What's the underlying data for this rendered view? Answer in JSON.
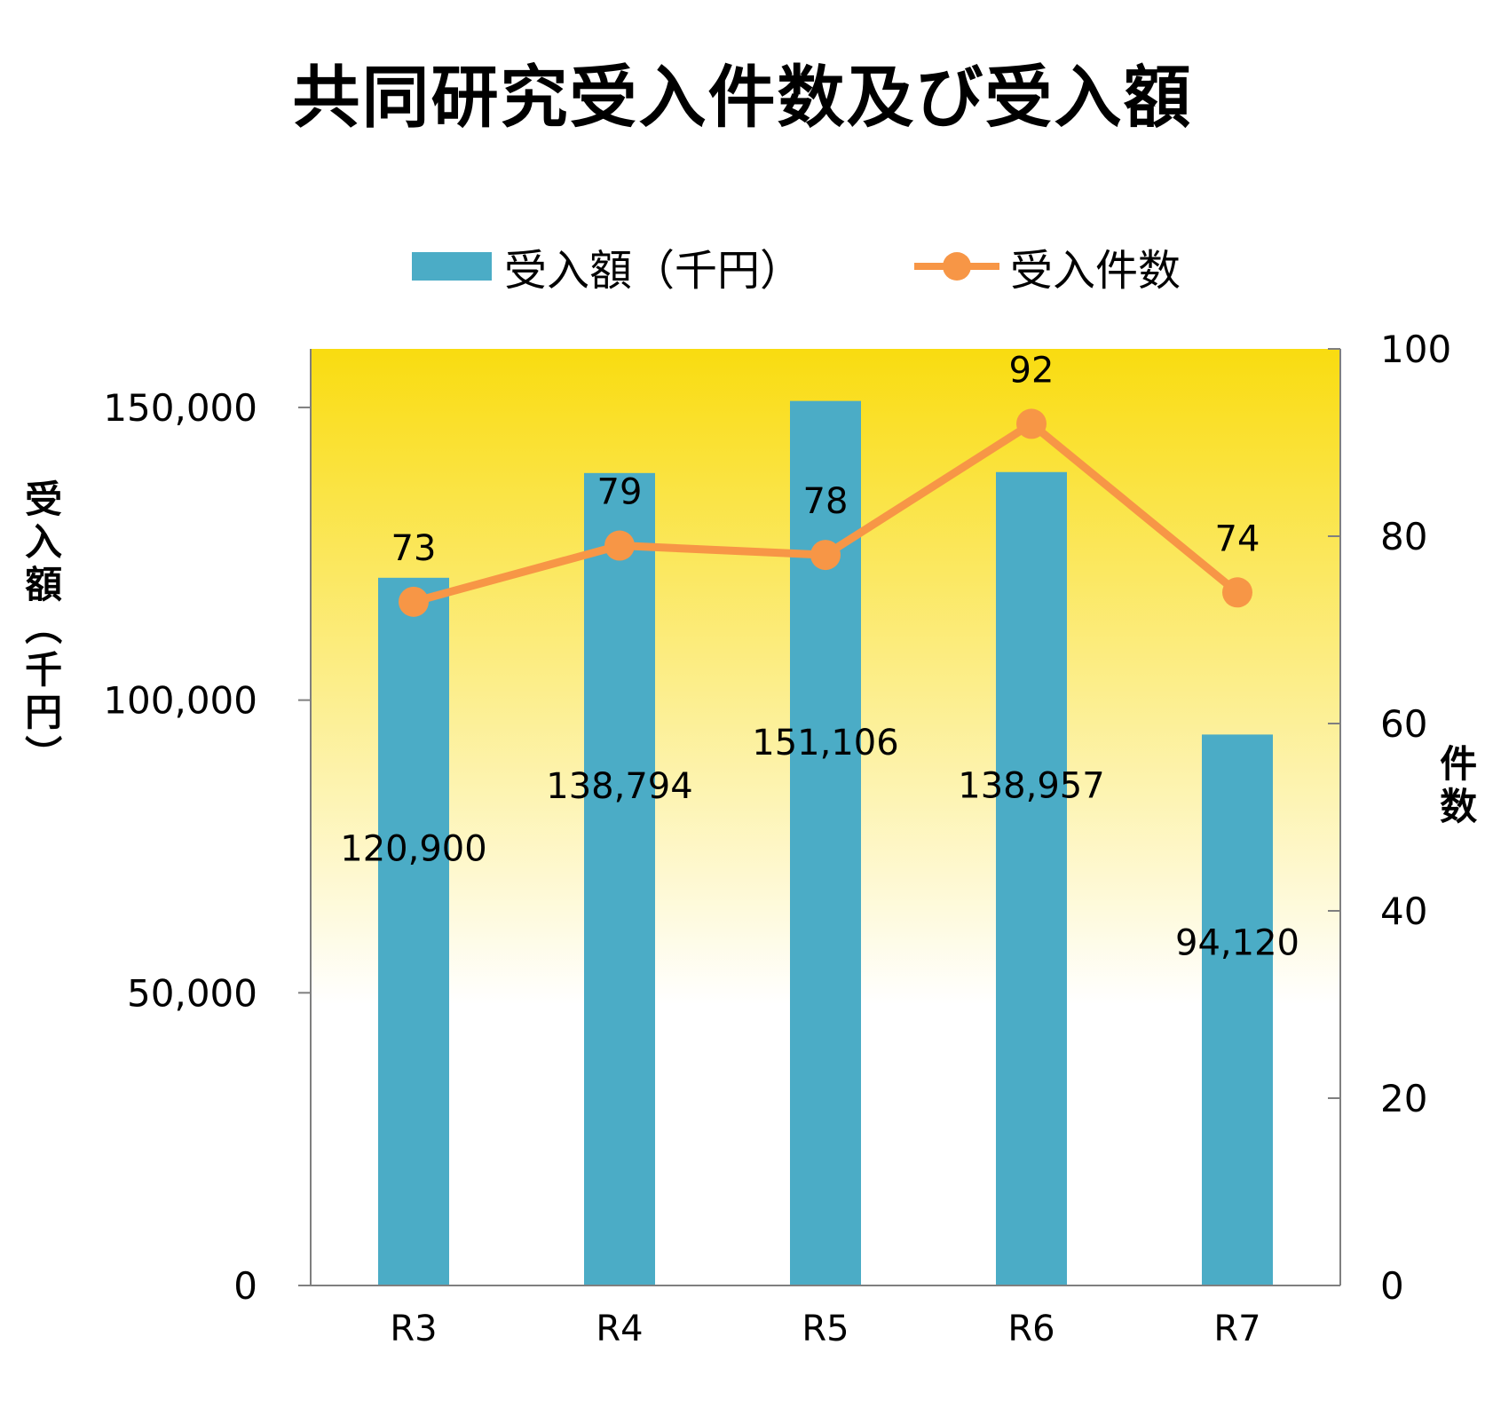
{
  "chart_data": {
    "type": "bar",
    "title": "共同研究受入件数及び受入額",
    "categories": [
      "R3",
      "R4",
      "R5",
      "R6",
      "R7"
    ],
    "series": [
      {
        "name": "受入額（千円）",
        "type": "bar",
        "axis": "left",
        "values": [
          120900,
          138794,
          151106,
          138957,
          94120
        ],
        "labels": [
          "120,900",
          "138,794",
          "151,106",
          "138,957",
          "94,120"
        ],
        "color": "#4BACC6"
      },
      {
        "name": "受入件数",
        "type": "line",
        "axis": "right",
        "values": [
          73,
          79,
          78,
          92,
          74
        ],
        "labels": [
          "73",
          "79",
          "78",
          "92",
          "74"
        ],
        "color": "#F79646"
      }
    ],
    "ylabel": "受入額（千円）",
    "ylim": [
      0,
      160000
    ],
    "yticks": [
      0,
      50000,
      100000,
      150000
    ],
    "ytick_labels": [
      "0",
      "50,000",
      "100,000",
      "150,000"
    ],
    "y2label": "件数",
    "y2lim": [
      0,
      100
    ],
    "y2ticks": [
      0,
      20,
      40,
      60,
      80,
      100
    ],
    "y2tick_labels": [
      "0",
      "20",
      "40",
      "60",
      "80",
      "100"
    ],
    "legend_position": "top",
    "grid": false,
    "background_gradient": [
      "#F9DC10",
      "#FFFFFF"
    ]
  }
}
